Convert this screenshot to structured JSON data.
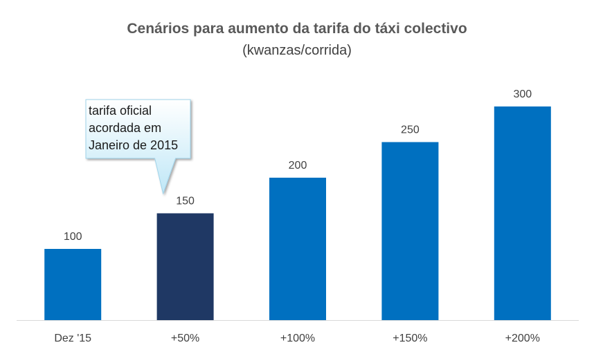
{
  "chart_data": {
    "type": "bar",
    "title": "Cenários para aumento da tarifa do táxi colectivo",
    "subtitle": "(kwanzas/corrida)",
    "categories": [
      "Dez '15",
      "+50%",
      "+100%",
      "+150%",
      "+200%"
    ],
    "values": [
      100,
      150,
      200,
      250,
      300
    ],
    "highlight_index": 1,
    "ylim": [
      0,
      300
    ],
    "grid": false,
    "colors": {
      "bar": "#0070c0",
      "highlight": "#1f3864",
      "axis": "#d9d9d9",
      "label": "#404040",
      "callout_top": "#ffffff",
      "callout_bottom": "#bfe7f7"
    },
    "annotation": {
      "lines": [
        "tarifa oficial",
        "acordada em",
        "Janeiro de 2015"
      ],
      "category_index": 1
    }
  }
}
